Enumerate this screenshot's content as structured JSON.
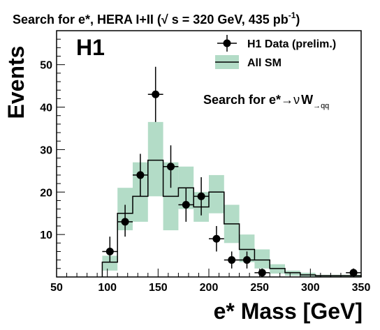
{
  "chart_data": {
    "type": "histogram",
    "title": "Search for e*, HERA I+II (√ s = 320 GeV, 435 pb",
    "title_sup": "-1",
    "title_end": ")",
    "experiment_label": "H1",
    "xlabel": "e* Mass [GeV]",
    "ylabel": "Events",
    "annotation": {
      "text": "Search for e*",
      "arrow": "→",
      "nu": "ν",
      "w": "W",
      "sub": "→qq"
    },
    "xlim": [
      50,
      350
    ],
    "ylim": [
      0,
      58
    ],
    "x_ticks": [
      50,
      100,
      150,
      200,
      250,
      300,
      350
    ],
    "y_ticks": [
      10,
      20,
      30,
      40,
      50
    ],
    "grid": false,
    "legend_position": "top-right",
    "legend": {
      "data": "H1 Data (prelim.)",
      "sm": "All SM"
    },
    "bin_edges": [
      95,
      110,
      125,
      140,
      155,
      170,
      185,
      200,
      215,
      230,
      245,
      260,
      275,
      290,
      305,
      320,
      335,
      350
    ],
    "sm_values": [
      3.5,
      15,
      19,
      27.5,
      19,
      21,
      16.5,
      20,
      12.5,
      6.5,
      4,
      2,
      1,
      0.5,
      0.3,
      0.3,
      0.3
    ],
    "sm_band_low": [
      1.5,
      11,
      13,
      19,
      11,
      16,
      13,
      15,
      8,
      3.5,
      2,
      0.8,
      0.3,
      0.1,
      0.1,
      0.1,
      0.1
    ],
    "sm_band_high": [
      5,
      21,
      27,
      36.5,
      27,
      26,
      20,
      24,
      17,
      10,
      6.5,
      3,
      1.5,
      1,
      0.5,
      0.5,
      0.5
    ],
    "data_points": [
      {
        "x": 102.5,
        "y": 6,
        "err_low": 2.5,
        "err_high": 3.5
      },
      {
        "x": 117.5,
        "y": 13,
        "err_low": 3.5,
        "err_high": 4
      },
      {
        "x": 132.5,
        "y": 24,
        "err_low": 5,
        "err_high": 5
      },
      {
        "x": 147.5,
        "y": 43,
        "err_low": 6.5,
        "err_high": 6.5
      },
      {
        "x": 162.5,
        "y": 26,
        "err_low": 5,
        "err_high": 5
      },
      {
        "x": 177.5,
        "y": 17,
        "err_low": 4,
        "err_high": 4
      },
      {
        "x": 192.5,
        "y": 19,
        "err_low": 4.5,
        "err_high": 4.5
      },
      {
        "x": 207.5,
        "y": 9,
        "err_low": 3,
        "err_high": 3
      },
      {
        "x": 222.5,
        "y": 4,
        "err_low": 2,
        "err_high": 2
      },
      {
        "x": 237.5,
        "y": 4,
        "err_low": 2,
        "err_high": 2
      },
      {
        "x": 252.5,
        "y": 1,
        "err_low": 1,
        "err_high": 1
      },
      {
        "x": 342.5,
        "y": 1,
        "err_low": 1,
        "err_high": 1
      }
    ],
    "colors": {
      "band": "#b3dcc7",
      "line": "#000000",
      "marker": "#000000"
    }
  }
}
